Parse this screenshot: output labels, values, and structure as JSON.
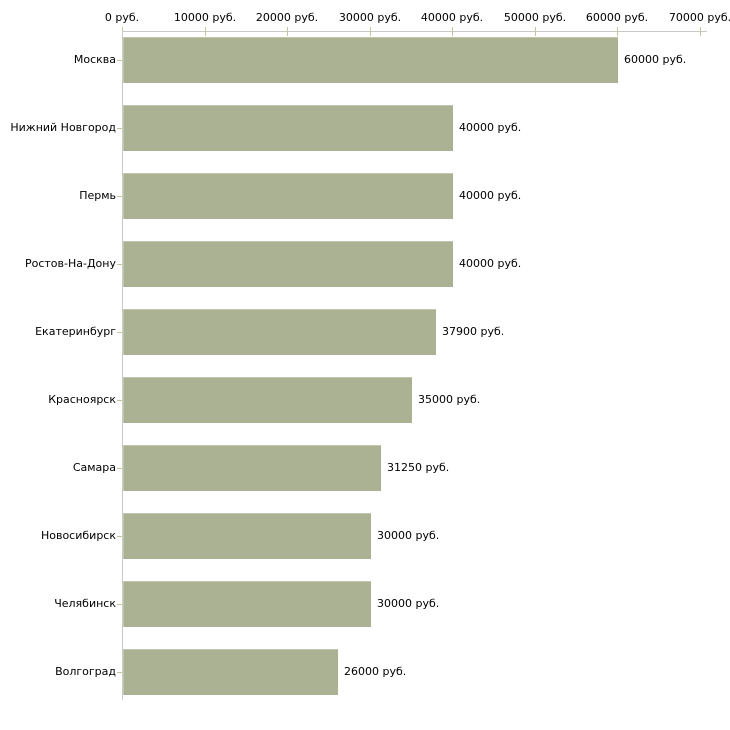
{
  "chart_data": {
    "type": "bar",
    "orientation": "horizontal",
    "title": "",
    "xlabel": "",
    "ylabel": "",
    "categories": [
      "Москва",
      "Нижний Новгород",
      "Пермь",
      "Ростов-На-Дону",
      "Екатеринбург",
      "Красноярск",
      "Самара",
      "Новосибирск",
      "Челябинск",
      "Волгоград"
    ],
    "values": [
      60000,
      40000,
      40000,
      40000,
      37900,
      35000,
      31250,
      30000,
      30000,
      26000
    ],
    "value_labels": [
      "60000 руб.",
      "40000 руб.",
      "40000 руб.",
      "40000 руб.",
      "37900 руб.",
      "35000 руб.",
      "31250 руб.",
      "30000 руб.",
      "30000 руб.",
      "26000 руб."
    ],
    "x_tick_values": [
      0,
      10000,
      20000,
      30000,
      40000,
      50000,
      60000,
      70000
    ],
    "x_tick_labels": [
      "0 руб.",
      "10000 руб.",
      "20000 руб.",
      "30000 руб.",
      "40000 руб.",
      "50000 руб.",
      "60000 руб.",
      "70000 руб."
    ],
    "xlim": [
      0,
      70000
    ],
    "grid": false,
    "legend": false,
    "colors": {
      "bar_fill": "#abb294",
      "bar_border": "#c2c8ab",
      "axis_line": "#c9c9c9",
      "tick_mark": "#c6c69b",
      "text": "#000000",
      "background": "#ffffff"
    }
  }
}
